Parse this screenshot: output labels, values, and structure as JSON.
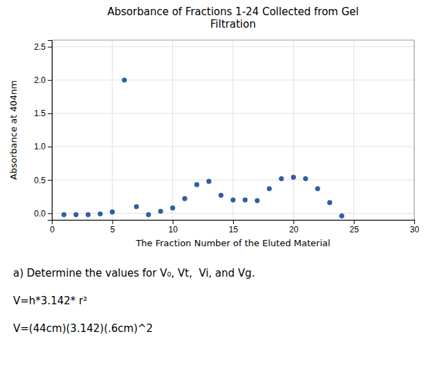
{
  "chart_data": {
    "type": "scatter",
    "title": "Absorbance of Fractions 1-24 Collected from Gel\nFiltration",
    "xlabel": "The Fraction Number of the Eluted Material",
    "ylabel": "Absorbance at 404nm",
    "x": [
      1,
      2,
      3,
      4,
      5,
      6,
      7,
      8,
      9,
      10,
      11,
      12,
      13,
      14,
      15,
      16,
      17,
      18,
      19,
      20,
      21,
      22,
      23,
      24
    ],
    "values": [
      -0.02,
      -0.02,
      -0.02,
      -0.01,
      0.02,
      2.0,
      0.1,
      -0.02,
      0.03,
      0.08,
      0.22,
      0.43,
      0.48,
      0.27,
      0.2,
      0.2,
      0.19,
      0.37,
      0.52,
      0.54,
      0.52,
      0.37,
      0.16,
      -0.04
    ],
    "color": "#2E5FA3",
    "xlim": [
      0,
      30
    ],
    "ylim": [
      -0.1,
      2.6
    ],
    "xticks": [
      0,
      5,
      10,
      15,
      20,
      25,
      30
    ],
    "yticks": [
      {
        "value": 0,
        "label": "0.0"
      },
      0.5,
      {
        "value": 1,
        "label": "1.0"
      },
      1.5,
      {
        "value": 2,
        "label": "2.0"
      },
      2.5
    ],
    "grid": true,
    "annotations": [
      "a) Determine the values for V₀, Vt,  Vi, and Vg.",
      "V=h*3.142* r²",
      "V=(44cm)(3.142)(.6cm)^2"
    ]
  }
}
